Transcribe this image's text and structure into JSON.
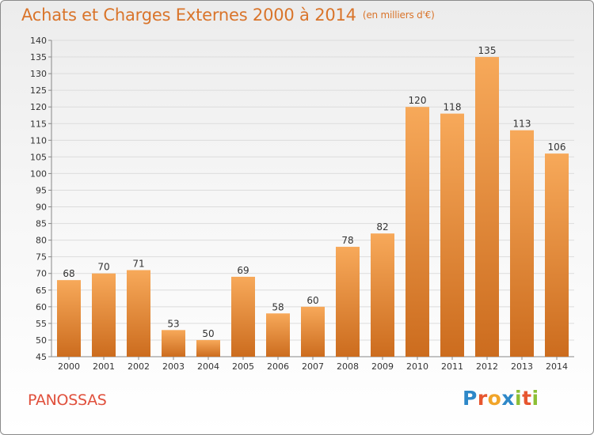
{
  "title": "Achats et Charges Externes 2000 à 2014",
  "subtitle": "(en milliers d'€)",
  "place_name": "PANOSSAS",
  "brand": {
    "letters": [
      "P",
      "r",
      "o",
      "x",
      "i",
      "t",
      "i"
    ],
    "colors": [
      "#2e88c8",
      "#e7562f",
      "#f1a52a",
      "#2e88c8",
      "#8cbf35",
      "#e7562f",
      "#8cbf35"
    ]
  },
  "colors": {
    "bar_top": "#f7a95a",
    "bar_bottom": "#cc6c1e",
    "title": "#d9742a",
    "place": "#e0503c"
  },
  "chart_data": {
    "type": "bar",
    "title": "Achats et Charges Externes 2000 à 2014",
    "subtitle": "(en milliers d'€)",
    "categories": [
      "2000",
      "2001",
      "2002",
      "2003",
      "2004",
      "2005",
      "2006",
      "2007",
      "2008",
      "2009",
      "2010",
      "2011",
      "2012",
      "2013",
      "2014"
    ],
    "values": [
      68,
      70,
      71,
      53,
      50,
      69,
      58,
      60,
      78,
      82,
      120,
      118,
      135,
      113,
      106
    ],
    "ylim": [
      45,
      140
    ],
    "yticks": [
      45,
      50,
      55,
      60,
      65,
      70,
      75,
      80,
      85,
      90,
      95,
      100,
      105,
      110,
      115,
      120,
      125,
      130,
      135,
      140
    ],
    "grid": true,
    "data_labels": true
  }
}
